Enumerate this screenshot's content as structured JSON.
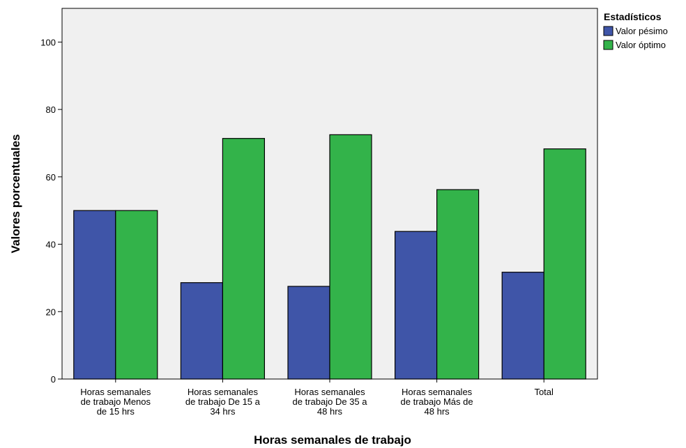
{
  "chart_data": {
    "type": "bar",
    "xlabel": "Horas semanales de trabajo",
    "ylabel": "Valores porcentuales",
    "ylim": [
      0,
      110
    ],
    "yticks": [
      0,
      20,
      40,
      60,
      80,
      100
    ],
    "grid": false,
    "legend": {
      "title": "Estadísticos",
      "placement": "top-right-outside"
    },
    "categories": [
      [
        "Horas semanales",
        "de trabajo Menos",
        "de 15 hrs"
      ],
      [
        "Horas semanales",
        "de trabajo De 15 a",
        "34 hrs"
      ],
      [
        "Horas semanales",
        "de trabajo De 35 a",
        "48 hrs"
      ],
      [
        "Horas semanales",
        "de trabajo Más de",
        "48 hrs"
      ],
      [
        "Total"
      ]
    ],
    "series": [
      {
        "name": "Valor pésimo",
        "color": "#3f55a8",
        "values": [
          50.0,
          28.6,
          27.5,
          43.8,
          31.7
        ]
      },
      {
        "name": "Valor óptimo",
        "color": "#33b34a",
        "values": [
          50.0,
          71.4,
          72.5,
          56.2,
          68.3
        ]
      }
    ],
    "plot_background": "#f0f0f0"
  }
}
